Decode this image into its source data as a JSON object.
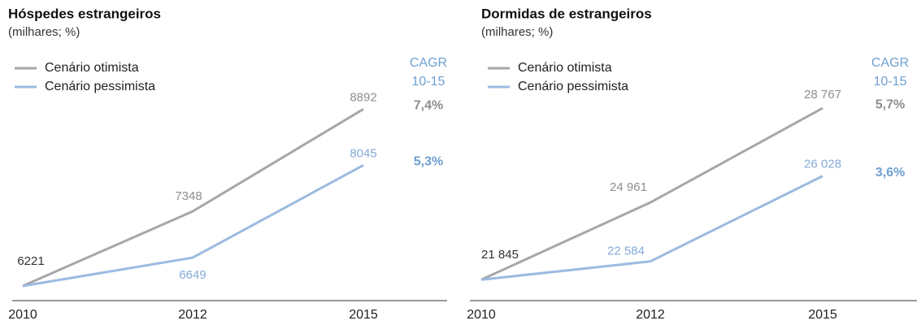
{
  "chart_data": [
    {
      "type": "line",
      "title": "Hóspedes estrangeiros",
      "subtitle": "(milhares; %)",
      "categories": [
        "2010",
        "2012",
        "2015"
      ],
      "ylim": [
        6000,
        10000
      ],
      "cagr_header": [
        "CAGR",
        "10-15"
      ],
      "series": [
        {
          "name": "Cenário otimista",
          "color": "#a7a7a9",
          "values": [
            6221,
            7348,
            8892
          ],
          "cagr": "7,4%"
        },
        {
          "name": "Cenário pessimista",
          "color": "#9bbbe0",
          "values": [
            6221,
            6649,
            8045
          ],
          "cagr": "5,3%"
        }
      ]
    },
    {
      "type": "line",
      "title": "Dormidas de estrangeiros",
      "subtitle": "(milhares; %)",
      "categories": [
        "2010",
        "2012",
        "2015"
      ],
      "ylim": [
        21000,
        31000
      ],
      "cagr_header": [
        "CAGR",
        "10-15"
      ],
      "series": [
        {
          "name": "Cenário otimista",
          "color": "#a7a7a9",
          "values": [
            21845,
            24961,
            28767
          ],
          "value_labels": [
            "21 845",
            "24 961",
            "28 767"
          ],
          "cagr": "5,7%"
        },
        {
          "name": "Cenário pessimista",
          "color": "#9bbbe0",
          "values": [
            21845,
            22584,
            26028
          ],
          "value_labels": [
            null,
            "22 584",
            "26 028"
          ],
          "cagr": "3,6%"
        }
      ]
    }
  ]
}
